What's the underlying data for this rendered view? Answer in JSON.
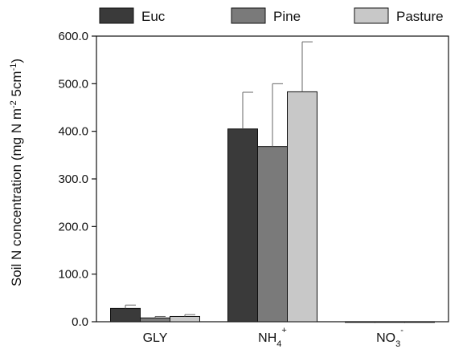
{
  "chart_data": {
    "type": "bar",
    "categories": [
      "GLY",
      "NH4+",
      "NO3-"
    ],
    "category_labels": [
      {
        "base": "GLY",
        "sub": "",
        "sup": ""
      },
      {
        "base": "NH",
        "sub": "4",
        "sup": "+"
      },
      {
        "base": "NO",
        "sub": "3",
        "sup": "-"
      }
    ],
    "series": [
      {
        "name": "Euc",
        "color": "#3a3a3a",
        "values": [
          28,
          405,
          0
        ],
        "errors": [
          7,
          77,
          0
        ]
      },
      {
        "name": "Pine",
        "color": "#7a7a7a",
        "values": [
          8,
          368,
          0
        ],
        "errors": [
          3,
          132,
          0
        ]
      },
      {
        "name": "Pasture",
        "color": "#c8c8c8",
        "values": [
          11,
          483,
          0
        ],
        "errors": [
          4,
          105,
          0
        ]
      }
    ],
    "ylabel": {
      "base": "Soil N concentration (mg N m",
      "sup1": "-2",
      "mid": " 5cm",
      "sup2": "-1",
      "end": ")"
    },
    "ylim": [
      0,
      600
    ],
    "yticks": [
      0,
      100,
      200,
      300,
      400,
      500,
      600
    ],
    "ytick_labels": [
      "0.0",
      "100.0",
      "200.0",
      "300.0",
      "400.0",
      "500.0",
      "600.0"
    ],
    "legend_position": "top",
    "grid": false
  }
}
